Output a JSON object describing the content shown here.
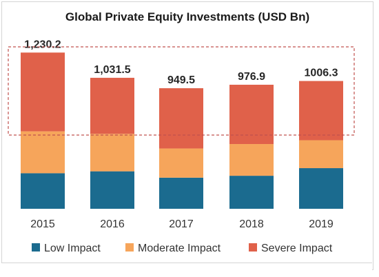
{
  "chart_data": {
    "type": "bar",
    "stacked": true,
    "title": "Global Private Equity Investments (USD Bn)",
    "categories": [
      "2015",
      "2016",
      "2017",
      "2018",
      "2019"
    ],
    "totals_labels": [
      "1,230.2",
      "1,031.5",
      "949.5",
      "976.9",
      "1006.3"
    ],
    "series": [
      {
        "name": "Low Impact",
        "color": "#1b6b8f",
        "values": [
          280,
          295,
          245,
          260,
          320
        ]
      },
      {
        "name": "Moderate Impact",
        "color": "#f6a55b",
        "values": [
          330,
          295,
          230,
          250,
          220
        ]
      },
      {
        "name": "Severe Impact",
        "color": "#e0614a",
        "values": [
          620.2,
          441.5,
          474.5,
          466.9,
          466.3
        ]
      }
    ],
    "ylim": [
      0,
      1400
    ],
    "grid": false,
    "legend_position": "bottom",
    "highlight_box_color": "#c0504d"
  }
}
